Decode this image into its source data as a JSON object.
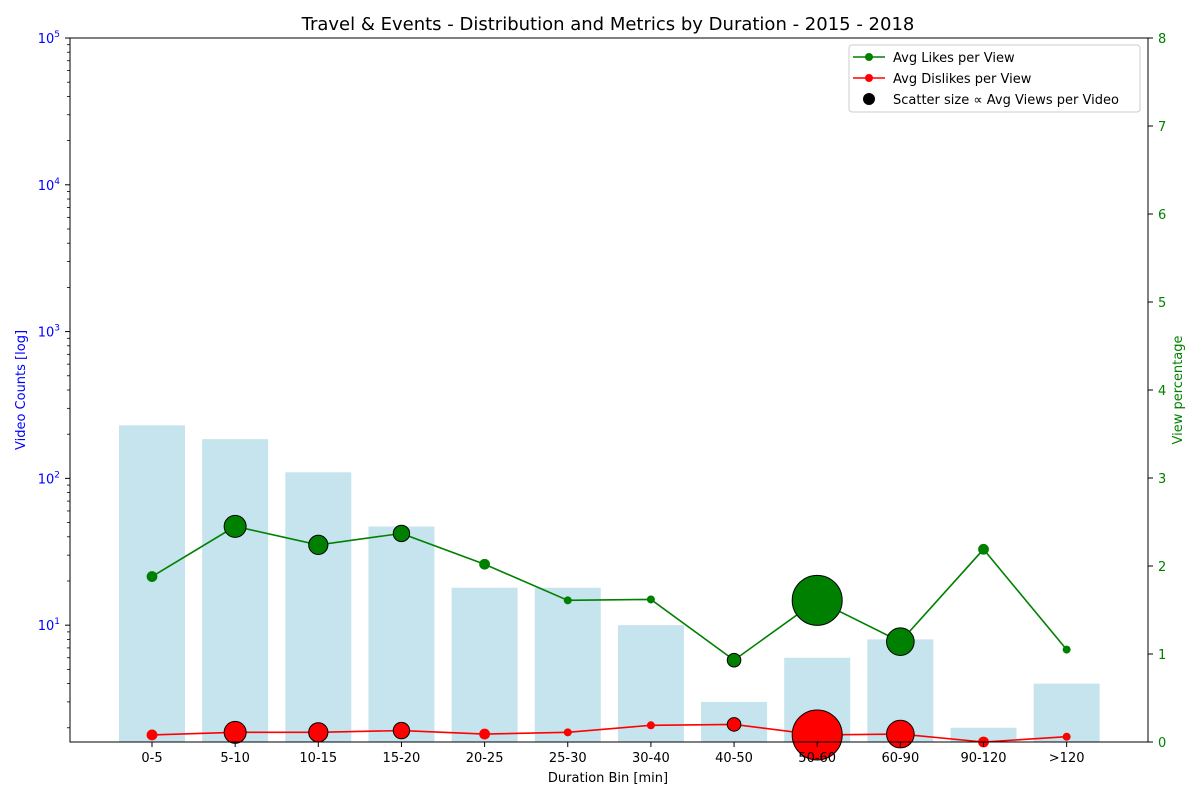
{
  "chart_data": {
    "type": "bar",
    "title": "Travel & Events - Distribution and Metrics by Duration - 2015 - 2018",
    "xlabel": "Duration Bin [min]",
    "ylabel_left": "Video Counts [log]",
    "ylabel_right": "View percentage",
    "categories": [
      "0-5",
      "5-10",
      "10-15",
      "15-20",
      "20-25",
      "25-30",
      "30-40",
      "40-50",
      "50-60",
      "60-90",
      "90-120",
      ">120"
    ],
    "left_axis": {
      "scale": "log",
      "range": [
        1.6,
        100000
      ],
      "ticks": [
        {
          "value": 10,
          "base": "10",
          "exp": "1"
        },
        {
          "value": 100,
          "base": "10",
          "exp": "2"
        },
        {
          "value": 1000,
          "base": "10",
          "exp": "3"
        },
        {
          "value": 10000,
          "base": "10",
          "exp": "4"
        },
        {
          "value": 100000,
          "base": "10",
          "exp": "5"
        }
      ],
      "color": "#0000ff"
    },
    "right_axis": {
      "scale": "linear",
      "range": [
        0,
        8
      ],
      "ticks": [
        "0",
        "1",
        "2",
        "3",
        "4",
        "5",
        "6",
        "7",
        "8"
      ],
      "color": "#008000"
    },
    "bars": {
      "values": [
        230,
        185,
        110,
        47,
        18,
        18,
        10,
        3,
        6,
        8,
        2,
        4
      ],
      "color": "#add8e6"
    },
    "series": [
      {
        "name": "Avg Likes per View",
        "axis": "right",
        "color": "#008000",
        "values": [
          1.88,
          2.45,
          2.24,
          2.37,
          2.02,
          1.61,
          1.62,
          0.93,
          1.61,
          1.14,
          2.19,
          1.05
        ],
        "size_level": [
          0.3,
          0.5,
          0.45,
          0.4,
          0.3,
          0.25,
          0.25,
          0.35,
          1.0,
          0.6,
          0.3,
          0.25
        ]
      },
      {
        "name": "Avg Dislikes per View",
        "axis": "right",
        "color": "#ff0000",
        "values": [
          0.08,
          0.11,
          0.11,
          0.13,
          0.09,
          0.11,
          0.19,
          0.2,
          0.08,
          0.09,
          0.0,
          0.06
        ],
        "size_level": [
          0.3,
          0.5,
          0.45,
          0.4,
          0.3,
          0.25,
          0.25,
          0.35,
          1.0,
          0.6,
          0.3,
          0.25
        ]
      }
    ],
    "size_legend_label": "Scatter size ∝ Avg Views per Video",
    "legend_position": "top-right",
    "grid": false
  }
}
